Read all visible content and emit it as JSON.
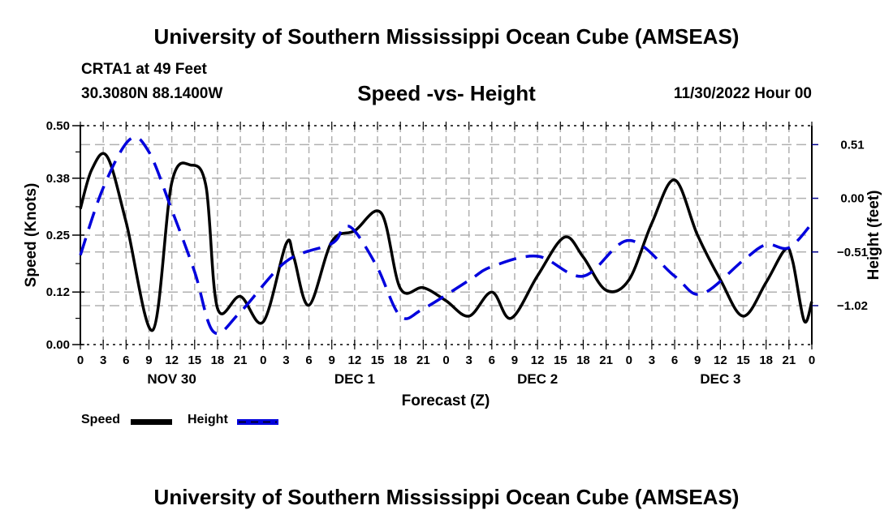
{
  "header": {
    "main_title": "University of Southern Mississippi Ocean Cube (AMSEAS)",
    "station": "CRTA1 at 49 Feet",
    "coords": "30.3080N  88.1400W",
    "subtitle": "Speed -vs- Height",
    "issued": "11/30/2022 Hour 00"
  },
  "footer": {
    "bottom_title": "University of Southern Mississippi Ocean Cube (AMSEAS)"
  },
  "legend": {
    "items": [
      {
        "label": "Speed",
        "color": "#000000",
        "style": "solid"
      },
      {
        "label": "Height",
        "color": "#0000dd",
        "style": "dashed"
      }
    ]
  },
  "chart_data": {
    "type": "line",
    "title": "Speed -vs- Height",
    "xlabel": "Forecast (Z)",
    "ylabel": "Speed (Knots)",
    "y2label": "Height (feet)",
    "xlim": [
      0,
      96
    ],
    "ylim": [
      0,
      0.5
    ],
    "y2lim": [
      -1.39,
      0.69
    ],
    "x_ticks": [
      0,
      3,
      6,
      9,
      12,
      15,
      18,
      21,
      24,
      27,
      30,
      33,
      36,
      39,
      42,
      45,
      48,
      51,
      54,
      57,
      60,
      63,
      66,
      69,
      72,
      75,
      78,
      81,
      84,
      87,
      90,
      93,
      96
    ],
    "x_tick_labels": [
      "0",
      "3",
      "6",
      "9",
      "12",
      "15",
      "18",
      "21",
      "0",
      "3",
      "6",
      "9",
      "12",
      "15",
      "18",
      "21",
      "0",
      "3",
      "6",
      "9",
      "12",
      "15",
      "18",
      "21",
      "0",
      "3",
      "6",
      "9",
      "12",
      "15",
      "18",
      "21",
      "0"
    ],
    "day_labels": [
      {
        "label": "NOV 30",
        "hour": 12
      },
      {
        "label": "DEC 1",
        "hour": 36
      },
      {
        "label": "DEC 2",
        "hour": 60
      },
      {
        "label": "DEC 3",
        "hour": 84
      }
    ],
    "y_ticks": [
      0.0,
      0.12,
      0.25,
      0.38,
      0.5
    ],
    "y_tick_labels": [
      "0.00",
      "0.12",
      "0.25",
      "0.38",
      "0.50"
    ],
    "y2_ticks": [
      0.51,
      0.0,
      -0.51,
      -1.02
    ],
    "y2_tick_labels": [
      "0.51",
      "0.00",
      "−0.51",
      "−1.02"
    ],
    "grid": true,
    "legend_position": "bottom-left",
    "series": [
      {
        "name": "Speed",
        "axis": "left",
        "color": "#000000",
        "x": [
          0,
          1.5,
          3.5,
          6,
          9.5,
          12,
          14.5,
          16.5,
          18,
          21,
          24,
          27,
          28,
          30,
          33,
          36,
          39.5,
          42,
          45,
          48,
          51,
          54,
          56.5,
          60,
          63.5,
          66,
          69,
          72,
          75,
          78,
          81,
          84,
          87,
          90,
          92.5,
          93.5,
          95,
          96
        ],
        "values": [
          0.31,
          0.4,
          0.43,
          0.28,
          0.033,
          0.37,
          0.41,
          0.36,
          0.083,
          0.11,
          0.052,
          0.23,
          0.2,
          0.09,
          0.235,
          0.26,
          0.3,
          0.128,
          0.13,
          0.1,
          0.065,
          0.12,
          0.06,
          0.157,
          0.245,
          0.2,
          0.124,
          0.148,
          0.277,
          0.376,
          0.25,
          0.148,
          0.065,
          0.142,
          0.217,
          0.19,
          0.054,
          0.098
        ]
      },
      {
        "name": "Height",
        "axis": "right",
        "color": "#0000dd",
        "x": [
          0,
          3,
          6.5,
          9,
          12,
          15,
          17.5,
          21,
          27,
          33,
          34.5,
          36,
          39,
          42,
          45,
          51,
          54,
          60,
          66,
          72,
          78,
          81.5,
          87,
          90,
          93,
          96
        ],
        "values": [
          -0.54,
          0.1,
          0.56,
          0.44,
          -0.11,
          -0.7,
          -1.27,
          -1.08,
          -0.6,
          -0.43,
          -0.28,
          -0.31,
          -0.66,
          -1.12,
          -1.05,
          -0.78,
          -0.65,
          -0.55,
          -0.74,
          -0.4,
          -0.74,
          -0.91,
          -0.59,
          -0.44,
          -0.47,
          -0.24
        ]
      }
    ]
  }
}
